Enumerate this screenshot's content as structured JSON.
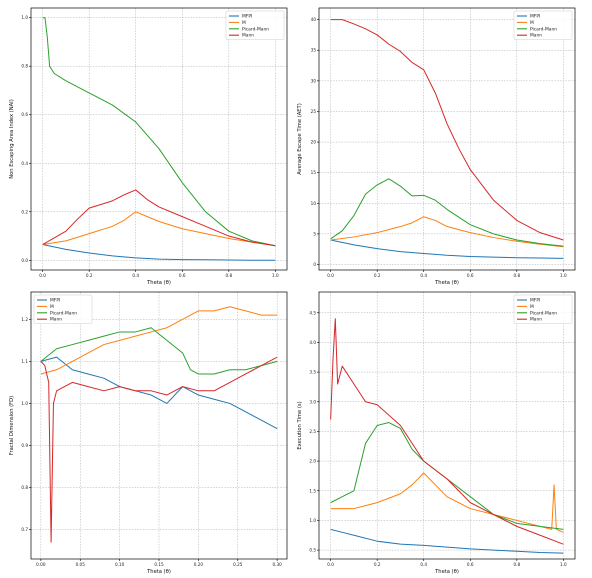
{
  "colors": {
    "MFPI": "#1f77b4",
    "M": "#ff7f0e",
    "Picard-Mann": "#2ca02c",
    "Mann": "#d62728"
  },
  "chart_data": [
    {
      "type": "line",
      "xlabel": "Theta (θ)",
      "ylabel": "Non Escaping Area Index (NAI)",
      "xlim": [
        -0.05,
        1.05
      ],
      "ylim": [
        -0.04,
        1.04
      ],
      "xticks": [
        0.0,
        0.2,
        0.4,
        0.6,
        0.8,
        1.0
      ],
      "xtick_labels": [
        "0.0",
        "0.2",
        "0.4",
        "0.6",
        "0.8",
        "1.0"
      ],
      "yticks": [
        0.0,
        0.2,
        0.4,
        0.6,
        0.8,
        1.0
      ],
      "ytick_labels": [
        "0.0",
        "0.2",
        "0.4",
        "0.6",
        "0.8",
        "1.0"
      ],
      "grid": true,
      "legend": "top-right",
      "series": [
        {
          "name": "MFPI",
          "x": [
            0,
            0.1,
            0.2,
            0.3,
            0.4,
            0.5,
            0.6,
            0.7,
            0.8,
            0.9,
            1.0
          ],
          "y": [
            0.065,
            0.045,
            0.03,
            0.018,
            0.01,
            0.005,
            0.003,
            0.002,
            0.001,
            0.0,
            0.0
          ]
        },
        {
          "name": "M",
          "x": [
            0,
            0.1,
            0.2,
            0.3,
            0.35,
            0.4,
            0.45,
            0.5,
            0.6,
            0.7,
            0.8,
            0.9,
            1.0
          ],
          "y": [
            0.065,
            0.08,
            0.11,
            0.14,
            0.165,
            0.2,
            0.18,
            0.16,
            0.13,
            0.11,
            0.09,
            0.075,
            0.06
          ]
        },
        {
          "name": "Picard-Mann",
          "x": [
            0,
            0.01,
            0.02,
            0.03,
            0.05,
            0.1,
            0.2,
            0.3,
            0.4,
            0.5,
            0.6,
            0.7,
            0.8,
            0.9,
            1.0
          ],
          "y": [
            1.0,
            1.0,
            0.92,
            0.8,
            0.77,
            0.74,
            0.69,
            0.64,
            0.57,
            0.46,
            0.32,
            0.2,
            0.12,
            0.08,
            0.06
          ]
        },
        {
          "name": "Mann",
          "x": [
            0,
            0.1,
            0.15,
            0.2,
            0.3,
            0.35,
            0.4,
            0.45,
            0.5,
            0.6,
            0.7,
            0.8,
            0.9,
            1.0
          ],
          "y": [
            0.065,
            0.12,
            0.17,
            0.215,
            0.245,
            0.27,
            0.29,
            0.25,
            0.22,
            0.18,
            0.14,
            0.1,
            0.075,
            0.06
          ]
        }
      ]
    },
    {
      "type": "line",
      "xlabel": "Theta (θ)",
      "ylabel": "Average Escape Time (AET)",
      "xlim": [
        -0.05,
        1.05
      ],
      "ylim": [
        -0.9,
        41.9
      ],
      "xticks": [
        0.0,
        0.2,
        0.4,
        0.6,
        0.8,
        1.0
      ],
      "xtick_labels": [
        "0.0",
        "0.2",
        "0.4",
        "0.6",
        "0.8",
        "1.0"
      ],
      "yticks": [
        0,
        5,
        10,
        15,
        20,
        25,
        30,
        35,
        40
      ],
      "ytick_labels": [
        "0",
        "5",
        "10",
        "15",
        "20",
        "25",
        "30",
        "35",
        "40"
      ],
      "grid": true,
      "legend": "top-right",
      "series": [
        {
          "name": "MFPI",
          "x": [
            0,
            0.1,
            0.2,
            0.3,
            0.4,
            0.5,
            0.6,
            0.7,
            0.8,
            0.9,
            1.0
          ],
          "y": [
            4.0,
            3.2,
            2.6,
            2.1,
            1.8,
            1.5,
            1.3,
            1.2,
            1.1,
            1.05,
            1.0
          ]
        },
        {
          "name": "M",
          "x": [
            0,
            0.1,
            0.2,
            0.3,
            0.35,
            0.4,
            0.45,
            0.5,
            0.6,
            0.7,
            0.8,
            0.9,
            1.0
          ],
          "y": [
            4.0,
            4.5,
            5.2,
            6.2,
            6.8,
            7.8,
            7.2,
            6.2,
            5.2,
            4.4,
            3.8,
            3.3,
            2.9
          ]
        },
        {
          "name": "Picard-Mann",
          "x": [
            0,
            0.05,
            0.1,
            0.15,
            0.2,
            0.25,
            0.3,
            0.35,
            0.4,
            0.45,
            0.5,
            0.6,
            0.7,
            0.8,
            0.9,
            1.0
          ],
          "y": [
            4.2,
            5.5,
            8.0,
            11.5,
            13.0,
            14.0,
            12.8,
            11.2,
            11.3,
            10.5,
            9.0,
            6.5,
            5.0,
            4.0,
            3.4,
            3.0
          ]
        },
        {
          "name": "Mann",
          "x": [
            0,
            0.05,
            0.1,
            0.15,
            0.2,
            0.25,
            0.3,
            0.35,
            0.4,
            0.45,
            0.5,
            0.55,
            0.6,
            0.7,
            0.8,
            0.9,
            1.0
          ],
          "y": [
            40,
            40,
            39.3,
            38.5,
            37.5,
            36,
            34.8,
            33,
            31.8,
            28,
            23,
            19,
            15.5,
            10.5,
            7.2,
            5.2,
            4.0
          ]
        }
      ]
    },
    {
      "type": "line",
      "xlabel": "Theta (θ)",
      "ylabel": "Fractal Dimension (FD)",
      "xlim": [
        -0.0125,
        0.3125
      ],
      "ylim": [
        0.63,
        1.265
      ],
      "xticks": [
        0.0,
        0.05,
        0.1,
        0.15,
        0.2,
        0.25,
        0.3
      ],
      "xtick_labels": [
        "0.00",
        "0.05",
        "0.10",
        "0.15",
        "0.20",
        "0.25",
        "0.30"
      ],
      "yticks": [
        0.7,
        0.8,
        0.9,
        1.0,
        1.1,
        1.2
      ],
      "ytick_labels": [
        "0.7",
        "0.8",
        "0.9",
        "1.0",
        "1.1",
        "1.2"
      ],
      "grid": true,
      "legend": "top-left",
      "series": [
        {
          "name": "MFPI",
          "x": [
            0,
            0.02,
            0.04,
            0.06,
            0.08,
            0.1,
            0.12,
            0.14,
            0.16,
            0.18,
            0.2,
            0.22,
            0.24,
            0.26,
            0.28,
            0.3
          ],
          "y": [
            1.1,
            1.11,
            1.08,
            1.07,
            1.06,
            1.04,
            1.03,
            1.02,
            1.0,
            1.04,
            1.02,
            1.01,
            1.0,
            0.98,
            0.96,
            0.94
          ]
        },
        {
          "name": "M",
          "x": [
            0,
            0.02,
            0.04,
            0.06,
            0.08,
            0.1,
            0.12,
            0.14,
            0.16,
            0.18,
            0.2,
            0.22,
            0.24,
            0.26,
            0.28,
            0.3
          ],
          "y": [
            1.07,
            1.08,
            1.1,
            1.12,
            1.14,
            1.15,
            1.16,
            1.17,
            1.18,
            1.2,
            1.22,
            1.22,
            1.23,
            1.22,
            1.21,
            1.21
          ]
        },
        {
          "name": "Picard-Mann",
          "x": [
            0,
            0.02,
            0.04,
            0.06,
            0.08,
            0.1,
            0.12,
            0.14,
            0.16,
            0.18,
            0.19,
            0.2,
            0.22,
            0.24,
            0.26,
            0.28,
            0.3
          ],
          "y": [
            1.1,
            1.13,
            1.14,
            1.15,
            1.16,
            1.17,
            1.17,
            1.18,
            1.15,
            1.12,
            1.08,
            1.07,
            1.07,
            1.08,
            1.08,
            1.09,
            1.1
          ]
        },
        {
          "name": "Mann",
          "x": [
            0,
            0.005,
            0.01,
            0.013,
            0.016,
            0.02,
            0.04,
            0.06,
            0.08,
            0.1,
            0.12,
            0.14,
            0.16,
            0.18,
            0.2,
            0.22,
            0.24,
            0.26,
            0.28,
            0.3
          ],
          "y": [
            1.1,
            1.09,
            1.05,
            0.67,
            1.0,
            1.03,
            1.05,
            1.04,
            1.03,
            1.04,
            1.03,
            1.03,
            1.02,
            1.04,
            1.03,
            1.03,
            1.05,
            1.07,
            1.09,
            1.11
          ]
        }
      ]
    },
    {
      "type": "line",
      "xlabel": "Theta (θ)",
      "ylabel": "Execution Time (s)",
      "xlim": [
        -0.05,
        1.05
      ],
      "ylim": [
        0.35,
        4.85
      ],
      "xticks": [
        0.0,
        0.2,
        0.4,
        0.6,
        0.8,
        1.0
      ],
      "xtick_labels": [
        "0.0",
        "0.2",
        "0.4",
        "0.6",
        "0.8",
        "1.0"
      ],
      "yticks": [
        0.5,
        1.0,
        1.5,
        2.0,
        2.5,
        3.0,
        3.5,
        4.0,
        4.5
      ],
      "ytick_labels": [
        "0.5",
        "1.0",
        "1.5",
        "2.0",
        "2.5",
        "3.0",
        "3.5",
        "4.0",
        "4.5"
      ],
      "grid": true,
      "legend": "top-right",
      "series": [
        {
          "name": "MFPI",
          "x": [
            0,
            0.05,
            0.1,
            0.2,
            0.3,
            0.4,
            0.5,
            0.6,
            0.7,
            0.8,
            0.9,
            1.0
          ],
          "y": [
            0.85,
            0.8,
            0.75,
            0.65,
            0.6,
            0.58,
            0.55,
            0.52,
            0.5,
            0.48,
            0.46,
            0.45
          ]
        },
        {
          "name": "M",
          "x": [
            0,
            0.1,
            0.2,
            0.3,
            0.35,
            0.4,
            0.45,
            0.5,
            0.6,
            0.7,
            0.8,
            0.9,
            0.95,
            0.96,
            0.97,
            1.0
          ],
          "y": [
            1.2,
            1.2,
            1.3,
            1.45,
            1.6,
            1.8,
            1.6,
            1.4,
            1.2,
            1.1,
            1.0,
            0.9,
            0.85,
            1.6,
            0.85,
            0.8
          ]
        },
        {
          "name": "Picard-Mann",
          "x": [
            0,
            0.05,
            0.1,
            0.15,
            0.2,
            0.25,
            0.3,
            0.35,
            0.4,
            0.5,
            0.6,
            0.7,
            0.8,
            0.9,
            1.0
          ],
          "y": [
            1.3,
            1.4,
            1.5,
            2.3,
            2.6,
            2.65,
            2.55,
            2.2,
            2.0,
            1.7,
            1.4,
            1.1,
            0.95,
            0.9,
            0.85
          ]
        },
        {
          "name": "Mann",
          "x": [
            0,
            0.01,
            0.02,
            0.03,
            0.05,
            0.1,
            0.15,
            0.2,
            0.3,
            0.4,
            0.5,
            0.6,
            0.7,
            0.8,
            0.9,
            1.0
          ],
          "y": [
            2.7,
            3.7,
            4.4,
            3.3,
            3.6,
            3.3,
            3.0,
            2.95,
            2.6,
            2.0,
            1.7,
            1.3,
            1.1,
            0.9,
            0.75,
            0.6
          ]
        }
      ]
    }
  ]
}
